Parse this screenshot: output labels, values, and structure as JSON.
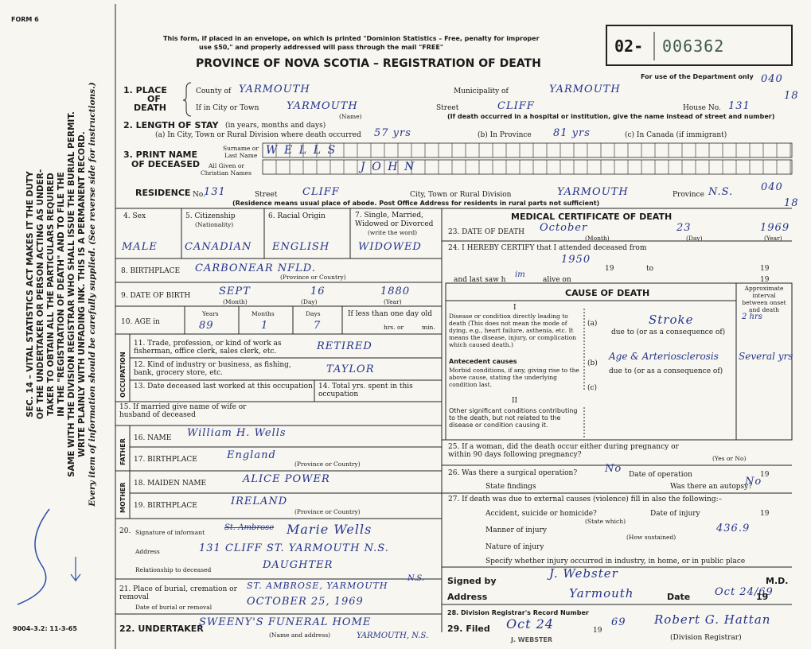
{
  "header": {
    "form": "FORM 6",
    "notice": [
      "This form, if placed in an envelope, on which is printed \"Dominion Statistics – Free, penalty for improper",
      "use $50,\" and properly addressed will pass through the mail \"FREE\""
    ],
    "title": "PROVINCE OF NOVA SCOTIA – REGISTRATION OF DEATH",
    "reg_prefix": "02-",
    "reg_number": "006362",
    "dept_note": "For use of the Department only",
    "code": [
      "040",
      "18"
    ]
  },
  "side_text": [
    "SEC. 14 – VITAL STATISTICS ACT MAKES IT THE DUTY",
    "OF THE UNDERTAKER OR PERSON ACTING AS UNDER-",
    "TAKER TO OBTAIN ALL THE PARTICULARS REQUIRED",
    "IN THE \"REGISTRATION OF DEATH\" AND TO FILE THE",
    "SAME WITH THE DIVISION REGISTRAR WHO SHALL ISSUE THE BURIAL PERMIT.",
    "WRITE PLAINLY WITH UNFADING INK. THIS IS A PERMANENT RECORD.",
    "Every item of information should be carefully supplied. (See reverse side for instructions.)"
  ],
  "footer_code": "9004–3.2: 11-3-65",
  "place": {
    "label": [
      "1. PLACE",
      "OF",
      "DEATH"
    ],
    "county_label": "County of",
    "county": "YARMOUTH",
    "municipality_label": "Municipality of",
    "municipality": "YARMOUTH",
    "city_label": "If in City or Town",
    "city": "YARMOUTH",
    "name_note": "(Name)",
    "street_label": "Street",
    "street": "CLIFF",
    "house_label": "House No.",
    "house": "131",
    "hospital_note": "(If death occurred in a hospital or institution, give the name instead of street and number)"
  },
  "stay": {
    "label": "2. LENGTH OF STAY",
    "qualifier": "(in years, months and days)",
    "a_label": "(a) In City, Town or Rural Division where death occurred",
    "a": "57 yrs",
    "b_label": "(b) In Province",
    "b": "81 yrs",
    "c_label": "(c) In Canada (if immigrant)"
  },
  "name": {
    "label": [
      "3. PRINT NAME",
      "OF DECEASED"
    ],
    "surname_label": [
      "Surname or",
      "Last Name"
    ],
    "surname": "WELLS",
    "given_label": [
      "All Given or",
      "Christian Names"
    ],
    "given": "JOHN"
  },
  "residence": {
    "label": "RESIDENCE",
    "no_label": "No.",
    "no": "131",
    "street_label": "Street",
    "street": "CLIFF",
    "city_label": "City, Town or Rural Division",
    "city": "YARMOUTH",
    "province_label": "Province",
    "province": "N.S.",
    "note": "(Residence means usual place of abode. Post Office Address for residents in rural parts not sufficient)",
    "code": [
      "040",
      "18"
    ]
  },
  "personal": {
    "sex_label": "4. Sex",
    "sex": "MALE",
    "citizenship_label": [
      "5. Citizenship",
      "(Nationality)"
    ],
    "citizenship": "CANADIAN",
    "racial_label": "6. Racial Origin",
    "racial": "ENGLISH",
    "status_label": [
      "7. Single, Married,",
      "Widowed or Divorced",
      "(write the word)"
    ],
    "status": "WIDOWED"
  },
  "birthplace": {
    "label": "8. BIRTHPLACE",
    "value": "CARBONEAR NFLD.",
    "note": "(Province or Country)"
  },
  "birth_date": {
    "label": "9. DATE OF BIRTH",
    "month": "SEPT",
    "day": "16",
    "year": "1880",
    "captions": [
      "(Month)",
      "(Day)",
      "(Year)"
    ]
  },
  "age": {
    "label": "10. AGE in",
    "headers": [
      "Years",
      "Months",
      "Days"
    ],
    "values": [
      "89",
      "1",
      "7"
    ],
    "less_label": "If less than one day old",
    "hrs": "hrs. or",
    "min": "min."
  },
  "occupation": {
    "section": "OCCUPATION",
    "trade_label": "11. Trade, profession, or kind of work as fisherman, office clerk, sales clerk, etc.",
    "trade": "RETIRED",
    "industry_label": "12. Kind of industry or business, as fishing, bank, grocery store, etc.",
    "industry": "TAYLOR",
    "last_worked_label": "13. Date deceased last worked at this occupation",
    "years_label": "14. Total yrs. spent in this occupation"
  },
  "spouse_label": "15. If married give name of wife or husband of deceased",
  "father": {
    "section": "FATHER",
    "name_label": "16. NAME",
    "name": "William H. Wells",
    "birthplace_label": "17. BIRTHPLACE",
    "birthplace": "England",
    "note": "(Province or Country)"
  },
  "mother": {
    "section": "MOTHER",
    "name_label": "18. MAIDEN NAME",
    "name": "ALICE POWER",
    "birthplace_label": "19. BIRTHPLACE",
    "birthplace": "IRELAND",
    "note": "(Province or Country)"
  },
  "informant": {
    "number": "20.",
    "signature_label": "Signature of informant",
    "struck": "St. Ambrose",
    "signature": "Marie Wells",
    "address_label": "Address",
    "address": "131 CLIFF ST. YARMOUTH N.S.",
    "relationship_label": "Relationship to deceased",
    "relationship": "DAUGHTER"
  },
  "burial": {
    "place_label": "21. Place of burial, cremation or removal",
    "place": "ST. AMBROSE, YARMOUTH",
    "place_province": "N.S.",
    "date_label": "Date of burial or removal",
    "date": "OCTOBER 25, 1969"
  },
  "undertaker": {
    "label": "22. UNDERTAKER",
    "name": "SWEENY'S FUNERAL HOME",
    "note": "(Name and address)",
    "town": "YARMOUTH, N.S."
  },
  "medical": {
    "title": "MEDICAL CERTIFICATE OF DEATH",
    "death_label": "23. DATE OF DEATH",
    "month": "October",
    "day": "23",
    "year": "1969",
    "captions": [
      "(Month)",
      "(Day)",
      "(Year)"
    ],
    "certify_label": "24. I HEREBY CERTIFY that I attended deceased from",
    "from": "1950",
    "from_19": "19",
    "to": "to",
    "to_19": "19",
    "last_saw_label": "and last saw h",
    "last_saw": "im",
    "alive_label": "alive on",
    "alive_19": "19",
    "cause": {
      "title": "CAUSE OF DEATH",
      "interval_label": "Approximate interval between onset and death",
      "part1": "I",
      "direct_label": "Disease or condition directly leading to death (This does not mean the mode of dying, e.g., heart failure, asthenia, etc. It means the disease, injury, or complication which caused death.)",
      "a": "(a)",
      "a_value": "Stroke",
      "a_interval": "2 hrs",
      "due_a": "due to (or as a consequence of)",
      "antecedent_label": "Antecedent causes",
      "morbid_label": "Morbid conditions, if any, giving rise to the above cause, stating the underlying condition last.",
      "b": "(b)",
      "b_value": "Age & Arteriosclerosis",
      "b_interval": "Several yrs",
      "due_b": "due to (or as a consequence of)",
      "c": "(c)",
      "part2": "II",
      "other_label": "Other significant conditions contributing to the death, but not related to the disease or condition causing it."
    },
    "pregnancy_label": "25. If a woman, did the death occur either during pregnancy or within 90 days following pregnancy?",
    "yes_no": "(Yes or No)",
    "operation_label": "26. Was there a surgical operation?",
    "operation": "No",
    "op_date_label": "Date of operation",
    "op_19": "19",
    "findings_label": "State findings",
    "autopsy_label": "Was there an autopsy?",
    "autopsy": "No",
    "external_label": "27. If death was due to external causes (violence) fill in also the following:–",
    "accident_label": "Accident, suicide or homicide?",
    "state_which": "(State which)",
    "injury_date_label": "Date of injury",
    "injury_19": "19",
    "manner_label": "Manner of injury",
    "manner_code": "436.9",
    "how": "(How sustained)",
    "nature_label": "Nature of injury",
    "specify_label": "Specify whether injury occurred in industry, in home, or in public place",
    "signed_label": "Signed by",
    "signed": "J. Webster",
    "md": "M.D.",
    "address_label": "Address",
    "address": "Yarmouth",
    "date_label": "Date",
    "date": "Oct 24/69",
    "date_19": "19",
    "record_label": "28. Division Registrar's Record Number",
    "filed_label": "29. Filed",
    "filed": "Oct 24",
    "filed_19": "19",
    "filed_year": "69",
    "registrar": "Robert G. Hattan",
    "registrar_label": "(Division Registrar)",
    "stamp": "J. WEBSTER"
  }
}
